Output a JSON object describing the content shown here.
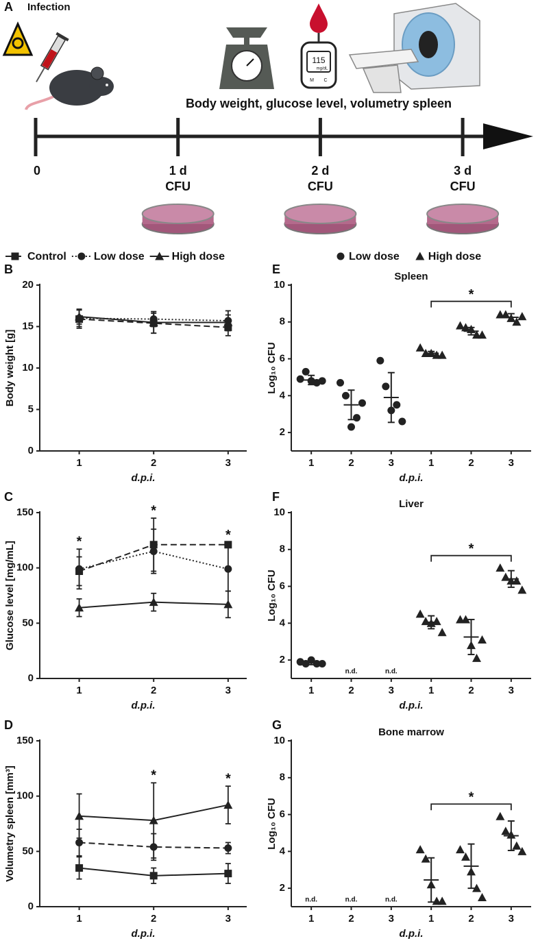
{
  "panel_a": {
    "label": "A",
    "title": "Infection",
    "caption": "Body weight, glucose level, volumetry spleen",
    "meter_reading": "115",
    "meter_unit": "mg/dL",
    "meter_buttons": [
      "M",
      "C"
    ],
    "timeline": [
      {
        "day": "0"
      },
      {
        "day": "1 d",
        "assay": "CFU"
      },
      {
        "day": "2 d",
        "assay": "CFU"
      },
      {
        "day": "3 d",
        "assay": "CFU"
      }
    ]
  },
  "chart_data": [
    {
      "type": "line",
      "label": "B",
      "ylabel": "Body weight [g]",
      "xlabel": "d.p.i.",
      "x": [
        1,
        2,
        3
      ],
      "xlim": [
        0.47,
        3.25
      ],
      "xticks": [
        1,
        2,
        3
      ],
      "ylim": [
        0,
        20
      ],
      "yticks": [
        0,
        5,
        10,
        15,
        20
      ],
      "legend": "top",
      "series": [
        {
          "name": "Control",
          "color": "#222222",
          "marker": "square",
          "dash": "dashed",
          "values": [
            15.9,
            15.4,
            14.9
          ],
          "errors": [
            1.1,
            1.2,
            1.0
          ]
        },
        {
          "name": "Low dose",
          "color": "#222222",
          "marker": "circle",
          "dash": "dotted",
          "values": [
            16.0,
            15.9,
            15.7
          ],
          "errors": [
            1.0,
            0.9,
            1.2
          ]
        },
        {
          "name": "High dose",
          "color": "#222222",
          "marker": "triangle",
          "dash": "solid",
          "values": [
            16.2,
            15.5,
            15.5
          ],
          "errors": [
            0.9,
            1.3,
            0.9
          ]
        }
      ]
    },
    {
      "type": "line",
      "label": "C",
      "ylabel": "Glucose level [mg/mL]",
      "xlabel": "d.p.i.",
      "x": [
        1,
        2,
        3
      ],
      "xlim": [
        0.47,
        3.25
      ],
      "xticks": [
        1,
        2,
        3
      ],
      "ylim": [
        0,
        150
      ],
      "yticks": [
        0,
        50,
        100,
        150
      ],
      "series": [
        {
          "color": "#222222",
          "marker": "square",
          "dash": "dashed",
          "values": [
            97,
            121,
            121
          ],
          "errors": [
            13,
            24,
            2
          ]
        },
        {
          "color": "#222222",
          "marker": "circle",
          "dash": "dotted",
          "values": [
            99,
            115,
            99
          ],
          "errors": [
            18,
            20,
            20
          ]
        },
        {
          "color": "#222222",
          "marker": "triangle",
          "dash": "solid",
          "values": [
            64,
            69,
            67
          ],
          "errors": [
            8,
            8,
            12
          ]
        }
      ],
      "annotations": [
        {
          "x": 1,
          "label": "*"
        },
        {
          "x": 2,
          "label": "*"
        },
        {
          "x": 3,
          "label": "*"
        }
      ]
    },
    {
      "type": "line",
      "label": "D",
      "ylabel": "Volumetry spleen [mm³]",
      "xlabel": "d.p.i.",
      "x": [
        1,
        2,
        3
      ],
      "xlim": [
        0.47,
        3.25
      ],
      "xticks": [
        1,
        2,
        3
      ],
      "ylim": [
        0,
        150
      ],
      "yticks": [
        0,
        50,
        100,
        150
      ],
      "series": [
        {
          "color": "#222222",
          "marker": "square",
          "dash": "solid",
          "values": [
            35,
            28,
            30
          ],
          "errors": [
            10,
            7,
            9
          ]
        },
        {
          "color": "#222222",
          "marker": "circle",
          "dash": "dashed",
          "values": [
            58,
            54,
            53
          ],
          "errors": [
            12,
            12,
            5
          ]
        },
        {
          "color": "#222222",
          "marker": "triangle",
          "dash": "solid",
          "values": [
            82,
            78,
            92
          ],
          "errors": [
            20,
            34,
            17
          ]
        }
      ],
      "annotations": [
        {
          "x": 2,
          "label": "*"
        },
        {
          "x": 3,
          "label": "*"
        }
      ]
    },
    {
      "type": "strip",
      "label": "E",
      "title": "Spleen",
      "ylabel": "Log₁₀ CFU",
      "xlabel": "d.p.i.",
      "categories": [
        "1",
        "2",
        "3",
        "1",
        "2",
        "3"
      ],
      "ylim": [
        1,
        10
      ],
      "yticks": [
        2,
        4,
        6,
        8,
        10
      ],
      "legend": "top",
      "series": [
        {
          "name": "Low dose",
          "color": "#222222",
          "marker": "circle",
          "values": [
            [
              4.9,
              5.3,
              4.8,
              4.7,
              4.8
            ],
            [
              4.7,
              4.0,
              2.3,
              2.8,
              3.6
            ],
            [
              5.9,
              4.5,
              3.2,
              3.5,
              2.6
            ],
            null,
            null,
            null
          ],
          "means": [
            4.85,
            3.5,
            3.9,
            null,
            null,
            null
          ],
          "sds": [
            0.25,
            0.8,
            1.35,
            null,
            null,
            null
          ]
        },
        {
          "name": "High dose",
          "color": "#222222",
          "marker": "triangle",
          "values": [
            null,
            null,
            null,
            [
              6.6,
              6.3,
              6.3,
              6.2,
              6.2
            ],
            [
              7.8,
              7.7,
              7.6,
              7.3,
              7.3
            ],
            [
              8.4,
              8.4,
              8.2,
              8.0,
              8.3
            ]
          ],
          "means": [
            null,
            null,
            null,
            6.3,
            7.5,
            8.25
          ],
          "sds": [
            null,
            null,
            null,
            0.1,
            0.2,
            0.2
          ]
        }
      ],
      "brackets": [
        {
          "from": 3,
          "to": 5,
          "label": "*"
        }
      ]
    },
    {
      "type": "strip",
      "label": "F",
      "title": "Liver",
      "ylabel": "Log₁₀ CFU",
      "xlabel": "d.p.i.",
      "categories": [
        "1",
        "2",
        "3",
        "1",
        "2",
        "3"
      ],
      "ylim": [
        1,
        10
      ],
      "yticks": [
        2,
        4,
        6,
        8,
        10
      ],
      "series": [
        {
          "color": "#222222",
          "marker": "circle",
          "values": [
            [
              1.9,
              1.8,
              2.0,
              1.8,
              1.8
            ],
            null,
            null,
            null,
            null,
            null
          ],
          "means": [
            1.85,
            null,
            null,
            null,
            null,
            null
          ],
          "sds": [
            0.1,
            null,
            null,
            null,
            null,
            null
          ],
          "value_labels": [
            null,
            "n.d.",
            "n.d.",
            null,
            null,
            null
          ]
        },
        {
          "color": "#222222",
          "marker": "triangle",
          "values": [
            null,
            null,
            null,
            [
              4.5,
              4.1,
              4.0,
              4.1,
              3.5
            ],
            [
              4.2,
              4.2,
              2.8,
              2.1,
              3.1
            ],
            [
              7.0,
              6.5,
              6.3,
              6.3,
              5.8
            ]
          ],
          "means": [
            null,
            null,
            null,
            4.05,
            3.25,
            6.4
          ],
          "sds": [
            null,
            null,
            null,
            0.35,
            0.95,
            0.45
          ]
        }
      ],
      "brackets": [
        {
          "from": 3,
          "to": 5,
          "label": "*"
        }
      ]
    },
    {
      "type": "strip",
      "label": "G",
      "title": "Bone marrow",
      "ylabel": "Log₁₀ CFU",
      "xlabel": "d.p.i.",
      "categories": [
        "1",
        "2",
        "3",
        "1",
        "2",
        "3"
      ],
      "ylim": [
        1,
        10
      ],
      "yticks": [
        2,
        4,
        6,
        8,
        10
      ],
      "series": [
        {
          "color": "#222222",
          "marker": "circle",
          "values": [
            null,
            null,
            null,
            null,
            null,
            null
          ],
          "means": [
            null,
            null,
            null,
            null,
            null,
            null
          ],
          "sds": [
            null,
            null,
            null,
            null,
            null,
            null
          ],
          "value_labels": [
            "n.d.",
            "n.d.",
            "n.d.",
            null,
            null,
            null
          ]
        },
        {
          "color": "#222222",
          "marker": "triangle",
          "values": [
            null,
            null,
            null,
            [
              4.1,
              3.6,
              2.2,
              1.3,
              1.3
            ],
            [
              4.1,
              3.7,
              2.9,
              2.0,
              1.5
            ],
            [
              5.9,
              5.1,
              4.9,
              4.3,
              4.0
            ]
          ],
          "means": [
            null,
            null,
            null,
            2.45,
            3.2,
            4.85
          ],
          "sds": [
            null,
            null,
            null,
            1.2,
            1.2,
            0.8
          ]
        }
      ],
      "brackets": [
        {
          "from": 3,
          "to": 5,
          "label": "*"
        }
      ]
    }
  ]
}
